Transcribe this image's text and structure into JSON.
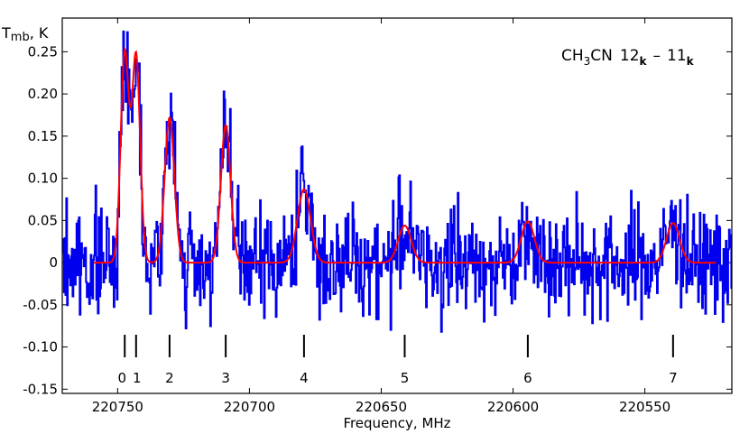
{
  "chart_data": {
    "type": "line",
    "title": "",
    "annotation": {
      "molecule_prefix": "CH",
      "molecule_sub": "3",
      "molecule_suffix": "CN",
      "upper": "12",
      "upper_sub": "k",
      "dash": "–",
      "lower": "11",
      "lower_sub": "k"
    },
    "ylabel": {
      "main": "T",
      "sub": "mb",
      "unit": ", K"
    },
    "xlabel": "Frequency, MHz",
    "xlim": [
      220771,
      220517
    ],
    "ylim": [
      -0.155,
      0.29
    ],
    "x_ticks": [
      220750,
      220700,
      220650,
      220600,
      220550
    ],
    "x_tick_labels": [
      "220750",
      "220700",
      "220650",
      "220600",
      "220550"
    ],
    "y_ticks": [
      0.25,
      0.2,
      0.15,
      0.1,
      0.05,
      0,
      -0.05,
      -0.1,
      -0.15
    ],
    "y_tick_labels": [
      "0.25",
      "0.20",
      "0.15",
      "0.10",
      "0.05",
      "0",
      "-0.05",
      "-0.10",
      "-0.15"
    ],
    "grid": false,
    "k_components": [
      {
        "label": "0",
        "freq": 220747.3
      },
      {
        "label": "1",
        "freq": 220743.0
      },
      {
        "label": "2",
        "freq": 220730.3
      },
      {
        "label": "3",
        "freq": 220709.0
      },
      {
        "label": "4",
        "freq": 220679.3
      },
      {
        "label": "5",
        "freq": 220641.1
      },
      {
        "label": "6",
        "freq": 220594.4
      },
      {
        "label": "7",
        "freq": 220539.3
      }
    ],
    "series": [
      {
        "role": "observed spectrum",
        "color": "#0000ee",
        "style": "step",
        "seed": 7,
        "noise_rms": 0.042
      },
      {
        "role": "model fit",
        "color": "#ff0000",
        "style": "line",
        "peaks": [
          {
            "center": 220747.3,
            "amp": 0.248,
            "fwhm": 3.6
          },
          {
            "center": 220743.0,
            "amp": 0.245,
            "fwhm": 3.6
          },
          {
            "center": 220730.3,
            "amp": 0.172,
            "fwhm": 4.3
          },
          {
            "center": 220709.0,
            "amp": 0.163,
            "fwhm": 4.3
          },
          {
            "center": 220679.3,
            "amp": 0.087,
            "fwhm": 5.8
          },
          {
            "center": 220641.1,
            "amp": 0.044,
            "fwhm": 5.8
          },
          {
            "center": 220594.4,
            "amp": 0.049,
            "fwhm": 5.8
          },
          {
            "center": 220539.3,
            "amp": 0.047,
            "fwhm": 5.8
          }
        ]
      }
    ]
  }
}
